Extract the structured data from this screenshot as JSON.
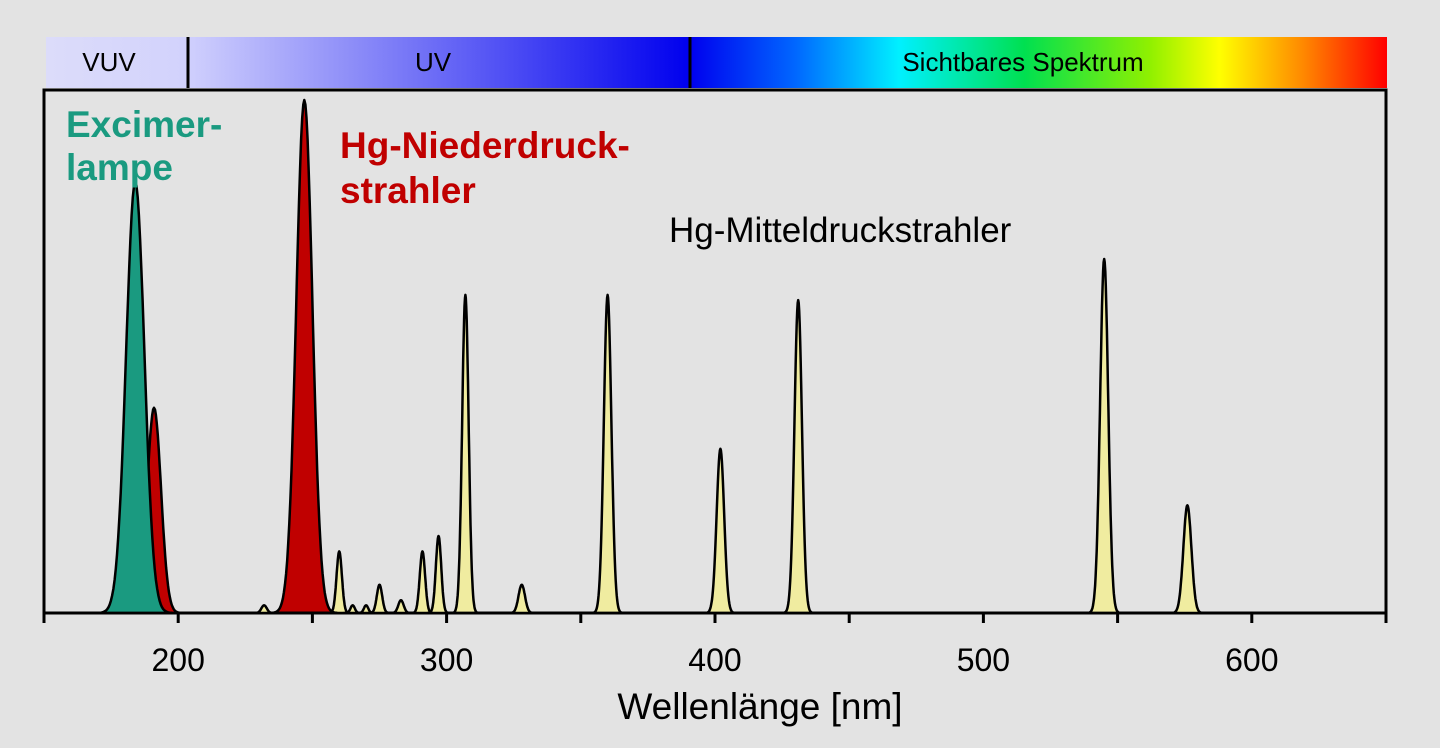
{
  "chart_data": {
    "type": "area",
    "xlabel": "Wellenlänge [nm]",
    "ylabel": "",
    "xlim": [
      150,
      650
    ],
    "ylim": [
      0,
      1
    ],
    "x_ticks": [
      200,
      300,
      400,
      500,
      600
    ],
    "grid": false,
    "spectrum_bar": [
      {
        "label": "VUV",
        "from": 150,
        "to": 198
      },
      {
        "label": "UV",
        "from": 198,
        "to": 386
      },
      {
        "label": "Sichtbares Spektrum",
        "from": 386,
        "to": 650
      }
    ],
    "series": [
      {
        "name": "Excimer-\nlampe",
        "label_lines": [
          "Excimer-",
          "lampe"
        ],
        "color": "#1a9a80",
        "label_color": "#1a9a80",
        "peaks": [
          {
            "x": 184,
            "y": 0.84,
            "w": 3.4
          }
        ]
      },
      {
        "name": "Hg-Niederdruck-\nstrahler",
        "label_lines": [
          "Hg-Niederdruck-",
          "strahler"
        ],
        "color": "#c00000",
        "label_color": "#c00000",
        "peaks": [
          {
            "x": 191,
            "y": 0.4,
            "w": 2.6
          },
          {
            "x": 247,
            "y": 1.0,
            "w": 3.0
          }
        ]
      },
      {
        "name": "Hg-Mitteldruckstrahler",
        "label_lines": [
          "Hg-Mitteldruckstrahler"
        ],
        "color": "#f0eca0",
        "label_color": "#000000",
        "peaks": [
          {
            "x": 232,
            "y": 0.015,
            "w": 1.0
          },
          {
            "x": 242,
            "y": 0.035,
            "w": 1.0
          },
          {
            "x": 260,
            "y": 0.12,
            "w": 1.0
          },
          {
            "x": 265,
            "y": 0.015,
            "w": 0.8
          },
          {
            "x": 270,
            "y": 0.015,
            "w": 0.8
          },
          {
            "x": 275,
            "y": 0.055,
            "w": 1.0
          },
          {
            "x": 283,
            "y": 0.025,
            "w": 1.0
          },
          {
            "x": 291,
            "y": 0.12,
            "w": 1.0
          },
          {
            "x": 297,
            "y": 0.15,
            "w": 1.0
          },
          {
            "x": 307,
            "y": 0.62,
            "w": 1.2
          },
          {
            "x": 328,
            "y": 0.055,
            "w": 1.2
          },
          {
            "x": 360,
            "y": 0.62,
            "w": 1.4
          },
          {
            "x": 402,
            "y": 0.32,
            "w": 1.4
          },
          {
            "x": 431,
            "y": 0.61,
            "w": 1.4
          },
          {
            "x": 545,
            "y": 0.69,
            "w": 1.5
          },
          {
            "x": 576,
            "y": 0.21,
            "w": 1.5
          }
        ]
      }
    ]
  }
}
